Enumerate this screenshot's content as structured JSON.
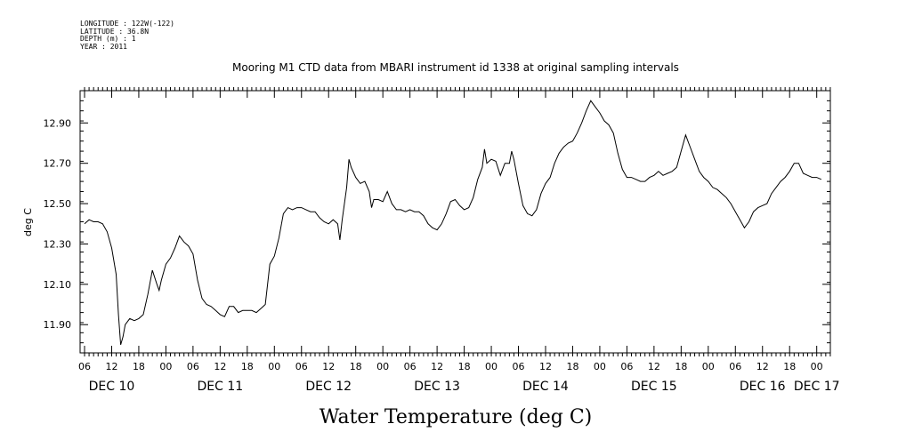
{
  "header": {
    "lines": [
      "LONGITUDE : 122W(-122)",
      "LATITUDE : 36.8N",
      "DEPTH (m) : 1",
      "YEAR : 2011"
    ]
  },
  "chart_data": {
    "type": "line",
    "title": "Mooring M1 CTD data from MBARI instrument id 1338 at original sampling intervals",
    "xlabel": "Water Temperature (deg C)",
    "ylabel": "deg C",
    "x_units": "hours since 2011-12-10 06:00",
    "xlim": [
      0,
      166
    ],
    "ylim": [
      11.76,
      13.06
    ],
    "y_ticks": [
      11.9,
      12.1,
      12.3,
      12.5,
      12.7,
      12.9
    ],
    "y_tick_labels": [
      "11.90",
      "12.10",
      "12.30",
      "12.50",
      "12.70",
      "12.90"
    ],
    "x_hour_ticks": [
      0,
      6,
      12,
      18,
      24,
      30,
      36,
      42,
      48,
      54,
      60,
      66,
      72,
      78,
      84,
      90,
      96,
      102,
      108,
      114,
      120,
      126,
      132,
      138,
      144,
      150,
      156,
      162
    ],
    "x_hour_labels": [
      "06",
      "12",
      "18",
      "00",
      "06",
      "12",
      "18",
      "00",
      "06",
      "12",
      "18",
      "00",
      "06",
      "12",
      "18",
      "00",
      "06",
      "12",
      "18",
      "00",
      "06",
      "12",
      "18",
      "00",
      "06",
      "12",
      "18",
      "00"
    ],
    "day_labels": [
      {
        "text": "DEC 10",
        "x": 6
      },
      {
        "text": "DEC 11",
        "x": 30
      },
      {
        "text": "DEC 12",
        "x": 54
      },
      {
        "text": "DEC 13",
        "x": 78
      },
      {
        "text": "DEC 14",
        "x": 102
      },
      {
        "text": "DEC 15",
        "x": 126
      },
      {
        "text": "DEC 16",
        "x": 150
      },
      {
        "text": "DEC 17",
        "x": 162
      }
    ],
    "grid": false,
    "series": [
      {
        "values": [
          [
            0,
            12.4
          ],
          [
            1,
            12.42
          ],
          [
            2,
            12.41
          ],
          [
            3,
            12.41
          ],
          [
            4,
            12.4
          ],
          [
            5,
            12.36
          ],
          [
            6,
            12.28
          ],
          [
            7,
            12.15
          ],
          [
            7.5,
            11.95
          ],
          [
            8,
            11.8
          ],
          [
            8.5,
            11.84
          ],
          [
            9,
            11.9
          ],
          [
            10,
            11.93
          ],
          [
            11,
            11.92
          ],
          [
            12,
            11.93
          ],
          [
            13,
            11.95
          ],
          [
            14,
            12.05
          ],
          [
            15,
            12.17
          ],
          [
            16,
            12.1
          ],
          [
            16.5,
            12.07
          ],
          [
            17,
            12.12
          ],
          [
            18,
            12.2
          ],
          [
            19,
            12.23
          ],
          [
            20,
            12.28
          ],
          [
            21,
            12.34
          ],
          [
            22,
            12.31
          ],
          [
            23,
            12.29
          ],
          [
            24,
            12.25
          ],
          [
            25,
            12.12
          ],
          [
            26,
            12.03
          ],
          [
            27,
            12.0
          ],
          [
            28,
            11.99
          ],
          [
            29,
            11.97
          ],
          [
            30,
            11.95
          ],
          [
            31,
            11.94
          ],
          [
            32,
            11.99
          ],
          [
            33,
            11.99
          ],
          [
            34,
            11.96
          ],
          [
            35,
            11.97
          ],
          [
            36,
            11.97
          ],
          [
            37,
            11.97
          ],
          [
            38,
            11.96
          ],
          [
            39,
            11.98
          ],
          [
            40,
            12.0
          ],
          [
            41,
            12.2
          ],
          [
            42,
            12.24
          ],
          [
            43,
            12.33
          ],
          [
            44,
            12.45
          ],
          [
            45,
            12.48
          ],
          [
            46,
            12.47
          ],
          [
            47,
            12.48
          ],
          [
            48,
            12.48
          ],
          [
            49,
            12.47
          ],
          [
            50,
            12.46
          ],
          [
            51,
            12.46
          ],
          [
            52,
            12.43
          ],
          [
            53,
            12.41
          ],
          [
            54,
            12.4
          ],
          [
            55,
            12.42
          ],
          [
            56,
            12.4
          ],
          [
            56.5,
            12.32
          ],
          [
            57,
            12.42
          ],
          [
            58,
            12.58
          ],
          [
            58.5,
            12.72
          ],
          [
            59,
            12.68
          ],
          [
            60,
            12.63
          ],
          [
            61,
            12.6
          ],
          [
            62,
            12.61
          ],
          [
            63,
            12.56
          ],
          [
            63.5,
            12.48
          ],
          [
            64,
            12.52
          ],
          [
            65,
            12.52
          ],
          [
            66,
            12.51
          ],
          [
            67,
            12.56
          ],
          [
            68,
            12.5
          ],
          [
            69,
            12.47
          ],
          [
            70,
            12.47
          ],
          [
            71,
            12.46
          ],
          [
            72,
            12.47
          ],
          [
            73,
            12.46
          ],
          [
            74,
            12.46
          ],
          [
            75,
            12.44
          ],
          [
            76,
            12.4
          ],
          [
            77,
            12.38
          ],
          [
            78,
            12.37
          ],
          [
            79,
            12.4
          ],
          [
            80,
            12.45
          ],
          [
            81,
            12.51
          ],
          [
            82,
            12.52
          ],
          [
            83,
            12.49
          ],
          [
            84,
            12.47
          ],
          [
            85,
            12.48
          ],
          [
            86,
            12.53
          ],
          [
            87,
            12.62
          ],
          [
            88,
            12.68
          ],
          [
            88.5,
            12.77
          ],
          [
            89,
            12.7
          ],
          [
            90,
            12.72
          ],
          [
            91,
            12.71
          ],
          [
            92,
            12.64
          ],
          [
            93,
            12.7
          ],
          [
            94,
            12.7
          ],
          [
            94.5,
            12.76
          ],
          [
            95,
            12.72
          ],
          [
            96,
            12.6
          ],
          [
            97,
            12.49
          ],
          [
            98,
            12.45
          ],
          [
            99,
            12.44
          ],
          [
            100,
            12.47
          ],
          [
            101,
            12.55
          ],
          [
            102,
            12.6
          ],
          [
            103,
            12.63
          ],
          [
            104,
            12.7
          ],
          [
            105,
            12.75
          ],
          [
            106,
            12.78
          ],
          [
            107,
            12.8
          ],
          [
            108,
            12.81
          ],
          [
            109,
            12.85
          ],
          [
            110,
            12.9
          ],
          [
            111,
            12.96
          ],
          [
            112,
            13.01
          ],
          [
            113,
            12.98
          ],
          [
            114,
            12.95
          ],
          [
            115,
            12.91
          ],
          [
            116,
            12.89
          ],
          [
            117,
            12.85
          ],
          [
            118,
            12.75
          ],
          [
            119,
            12.67
          ],
          [
            120,
            12.63
          ],
          [
            121,
            12.63
          ],
          [
            122,
            12.62
          ],
          [
            123,
            12.61
          ],
          [
            124,
            12.61
          ],
          [
            125,
            12.63
          ],
          [
            126,
            12.64
          ],
          [
            127,
            12.66
          ],
          [
            128,
            12.64
          ],
          [
            129,
            12.65
          ],
          [
            130,
            12.66
          ],
          [
            131,
            12.68
          ],
          [
            132,
            12.76
          ],
          [
            133,
            12.84
          ],
          [
            134,
            12.78
          ],
          [
            135,
            12.72
          ],
          [
            136,
            12.66
          ],
          [
            137,
            12.63
          ],
          [
            138,
            12.61
          ],
          [
            139,
            12.58
          ],
          [
            140,
            12.57
          ],
          [
            141,
            12.55
          ],
          [
            142,
            12.53
          ],
          [
            143,
            12.5
          ],
          [
            144,
            12.46
          ],
          [
            145,
            12.42
          ],
          [
            146,
            12.38
          ],
          [
            147,
            12.41
          ],
          [
            148,
            12.46
          ],
          [
            149,
            12.48
          ],
          [
            150,
            12.49
          ],
          [
            151,
            12.5
          ],
          [
            152,
            12.55
          ],
          [
            153,
            12.58
          ],
          [
            154,
            12.61
          ],
          [
            155,
            12.63
          ],
          [
            156,
            12.66
          ],
          [
            157,
            12.7
          ],
          [
            158,
            12.7
          ],
          [
            159,
            12.65
          ],
          [
            160,
            12.64
          ],
          [
            161,
            12.63
          ],
          [
            162,
            12.63
          ],
          [
            163,
            12.62
          ]
        ]
      }
    ]
  }
}
